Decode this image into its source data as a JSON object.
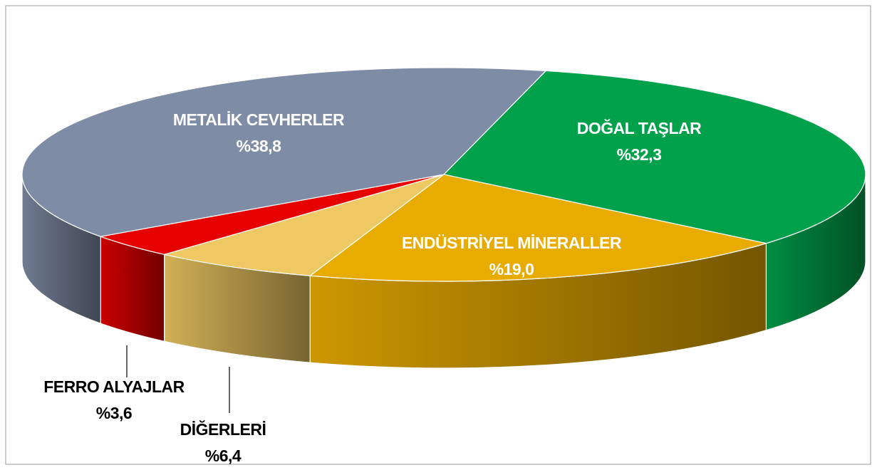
{
  "chart_data": {
    "type": "pie",
    "categories": [
      "DOĞAL TAŞLAR",
      "ENDÜSTRİYEL MİNERALLER",
      "DİĞERLERİ",
      "FERRO ALYAJLAR",
      "METALİK CEVHERLER"
    ],
    "values": [
      32.3,
      19.0,
      6.4,
      3.6,
      38.8
    ],
    "value_labels": [
      "%32,3",
      "%19,0",
      "%6,4",
      "%3,6",
      "%38,8"
    ],
    "colors": [
      "#00a14b",
      "#e8ac00",
      "#eec862",
      "#e60000",
      "#7f8ca5"
    ]
  }
}
